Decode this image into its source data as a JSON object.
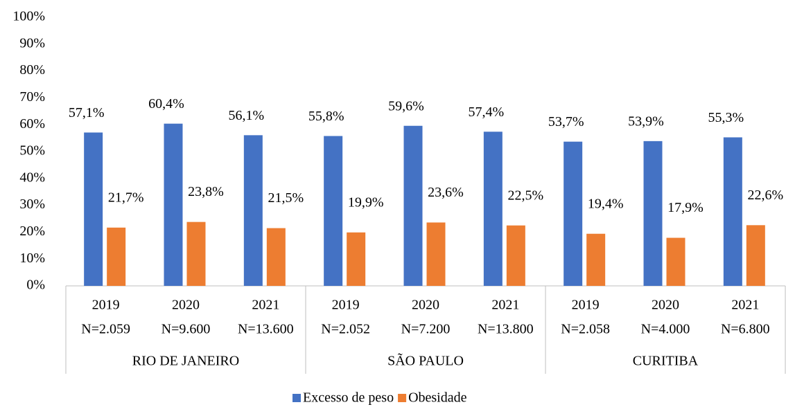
{
  "chart_data": {
    "type": "bar",
    "groups": [
      {
        "name": "RIO DE JANEIRO",
        "categories": [
          "2019",
          "2020",
          "2021"
        ],
        "n_labels": [
          "N=2.059",
          "N=9.600",
          "N=13.600"
        ]
      },
      {
        "name": "SÃO PAULO",
        "categories": [
          "2019",
          "2020",
          "2021"
        ],
        "n_labels": [
          "N=2.052",
          "N=7.200",
          "N=13.800"
        ]
      },
      {
        "name": "CURITIBA",
        "categories": [
          "2019",
          "2020",
          "2021"
        ],
        "n_labels": [
          "N=2.058",
          "N=4.000",
          "N=6.800"
        ]
      }
    ],
    "series": [
      {
        "name": "Excesso de peso",
        "color": "#4472c4",
        "values": [
          57.1,
          60.4,
          56.1,
          55.8,
          59.6,
          57.4,
          53.7,
          53.9,
          55.3
        ],
        "value_labels": [
          "57,1%",
          "60,4%",
          "56,1%",
          "55,8%",
          "59,6%",
          "57,4%",
          "53,7%",
          "53,9%",
          "55,3%"
        ]
      },
      {
        "name": "Obesidade",
        "color": "#ed7d31",
        "values": [
          21.7,
          23.8,
          21.5,
          19.9,
          23.6,
          22.5,
          19.4,
          17.9,
          22.6
        ],
        "value_labels": [
          "21,7%",
          "23,8%",
          "21,5%",
          "19,9%",
          "23,6%",
          "22,5%",
          "19,4%",
          "17,9%",
          "22,6%"
        ]
      }
    ],
    "ylim": [
      0,
      100
    ],
    "yticks": [
      {
        "value": 0,
        "label": "0%"
      },
      {
        "value": 10,
        "label": "10%"
      },
      {
        "value": 20,
        "label": "20%"
      },
      {
        "value": 30,
        "label": "30%"
      },
      {
        "value": 40,
        "label": "40%"
      },
      {
        "value": 50,
        "label": "50%"
      },
      {
        "value": 60,
        "label": "60%"
      },
      {
        "value": 70,
        "label": "70%"
      },
      {
        "value": 80,
        "label": "80%"
      },
      {
        "value": 90,
        "label": "90%"
      },
      {
        "value": 100,
        "label": "100%"
      }
    ],
    "grid": false,
    "legend": "bottom"
  }
}
